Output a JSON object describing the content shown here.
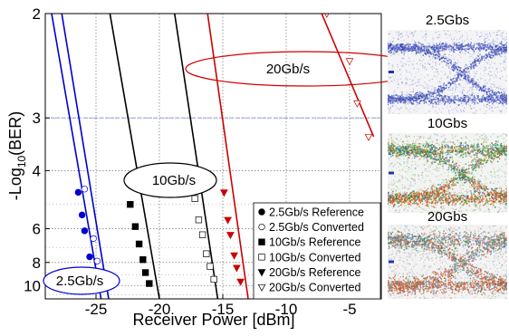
{
  "chart_data": {
    "type": "line",
    "xlabel": "Receiver Power [dBm]",
    "ylabel_main": "-Log",
    "ylabel_sub": "10",
    "ylabel_tail": "(BER)",
    "xlim": [
      -29,
      -2.5
    ],
    "ylim": [
      2,
      11.5
    ],
    "y_scale": "-log10(-log10(BER))",
    "xticks": [
      -25,
      -20,
      -15,
      -10,
      -5
    ],
    "xtick_labels": [
      "-25",
      "-20",
      "-15",
      "-10",
      "-5"
    ],
    "yticks": [
      2,
      3,
      4,
      6,
      8,
      10
    ],
    "ytick_labels": [
      "2",
      "3",
      "4",
      "6",
      "8",
      "10"
    ],
    "grid": "dotted",
    "legend_position": "lower-right",
    "series": [
      {
        "name": "2.5Gb/s Reference",
        "marker": "filled-circle",
        "color": "#0000d0",
        "points": [
          [
            -26.4,
            4.6
          ],
          [
            -26.1,
            5.4
          ],
          [
            -25.9,
            6.1
          ],
          [
            -25.5,
            7.6
          ],
          [
            -25.35,
            8.7
          ],
          [
            -25.2,
            9.8
          ]
        ],
        "fit": [
          [
            -28.5,
            2.0
          ],
          [
            -24.6,
            11.5
          ]
        ]
      },
      {
        "name": "2.5Gb/s Converted",
        "marker": "open-circle",
        "color": "#0000d0",
        "points": [
          [
            -25.9,
            4.5
          ],
          [
            -25.2,
            6.5
          ],
          [
            -24.9,
            7.9
          ],
          [
            -24.7,
            9.0
          ],
          [
            -24.55,
            9.8
          ]
        ],
        "fit": [
          [
            -27.7,
            2.0
          ],
          [
            -24.0,
            11.5
          ]
        ]
      },
      {
        "name": "10Gb/s Reference",
        "marker": "filled-square",
        "color": "#000000",
        "points": [
          [
            -22.3,
            5.0
          ],
          [
            -21.9,
            5.9
          ],
          [
            -21.6,
            6.8
          ],
          [
            -21.3,
            7.8
          ],
          [
            -21.1,
            8.8
          ],
          [
            -20.8,
            9.8
          ]
        ],
        "fit": [
          [
            -23.9,
            2.0
          ],
          [
            -20.0,
            11.5
          ]
        ]
      },
      {
        "name": "10Gb/s Converted",
        "marker": "open-square",
        "color": "#000000",
        "points": [
          [
            -17.2,
            4.8
          ],
          [
            -16.9,
            5.6
          ],
          [
            -16.6,
            6.3
          ],
          [
            -16.3,
            7.4
          ],
          [
            -16.0,
            8.3
          ],
          [
            -15.7,
            9.4
          ]
        ],
        "fit": [
          [
            -18.8,
            2.0
          ],
          [
            -15.4,
            11.5
          ]
        ]
      },
      {
        "name": "20Gb/s Reference",
        "marker": "filled-triangle-down",
        "color": "#cc0000",
        "points": [
          [
            -14.9,
            4.6
          ],
          [
            -14.6,
            5.6
          ],
          [
            -14.4,
            6.3
          ],
          [
            -14.1,
            7.5
          ],
          [
            -13.9,
            8.4
          ],
          [
            -13.6,
            9.6
          ]
        ],
        "fit": [
          [
            -16.2,
            2.0
          ],
          [
            -13.0,
            11.5
          ]
        ]
      },
      {
        "name": "20Gb/s Converted",
        "marker": "open-triangle-down",
        "color": "#cc0000",
        "points": [
          [
            -6.8,
            2.0
          ],
          [
            -5.0,
            2.35
          ],
          [
            -4.4,
            2.8
          ],
          [
            -3.5,
            3.3
          ]
        ],
        "fit": [
          [
            -7.2,
            2.0
          ],
          [
            -3.1,
            3.3
          ]
        ]
      }
    ],
    "annotations": [
      "2.5Gb/s",
      "10Gb/s",
      "20Gb/s"
    ],
    "eye_titles": [
      "2.5Gbs",
      "10Gbs",
      "20Gbs"
    ]
  }
}
